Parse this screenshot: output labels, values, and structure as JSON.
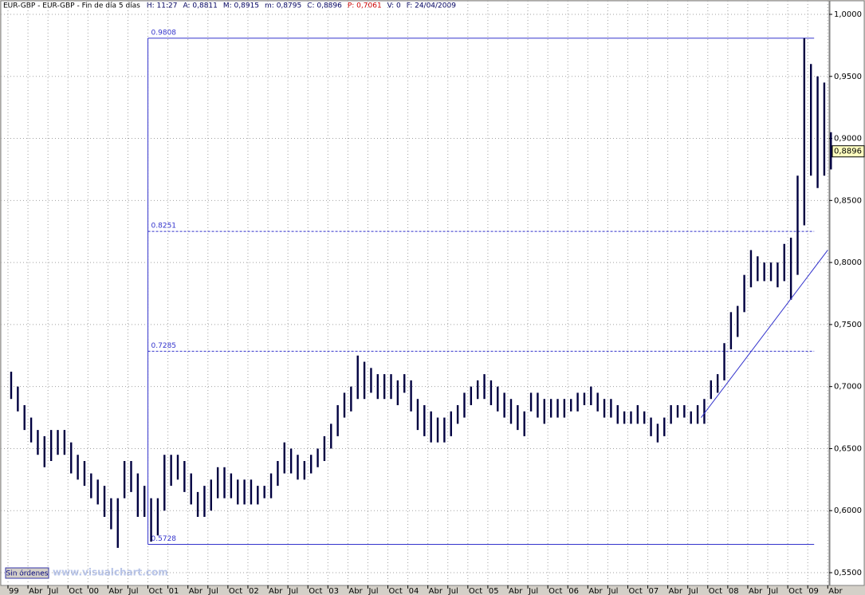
{
  "chart_data": {
    "type": "high_low",
    "title": "EUR-GBP - EUR-GBP - Fin de día 5 días",
    "info": [
      "H: 11:27",
      "A: 0,8811",
      "M: 0,8915",
      "m: 0,8795",
      "C: 0,8896",
      "P: 0,7061",
      "V: 0",
      "F: 24/04/2009"
    ],
    "x": [
      "1999-01",
      "1999-02",
      "1999-03",
      "1999-04",
      "1999-05",
      "1999-06",
      "1999-07",
      "1999-08",
      "1999-09",
      "1999-10",
      "1999-11",
      "1999-12",
      "2000-01",
      "2000-02",
      "2000-03",
      "2000-04",
      "2000-05",
      "2000-06",
      "2000-07",
      "2000-08",
      "2000-09",
      "2000-10",
      "2000-11",
      "2000-12",
      "2001-01",
      "2001-02",
      "2001-03",
      "2001-04",
      "2001-05",
      "2001-06",
      "2001-07",
      "2001-08",
      "2001-09",
      "2001-10",
      "2001-11",
      "2001-12",
      "2002-01",
      "2002-02",
      "2002-03",
      "2002-04",
      "2002-05",
      "2002-06",
      "2002-07",
      "2002-08",
      "2002-09",
      "2002-10",
      "2002-11",
      "2002-12",
      "2003-01",
      "2003-02",
      "2003-03",
      "2003-04",
      "2003-05",
      "2003-06",
      "2003-07",
      "2003-08",
      "2003-09",
      "2003-10",
      "2003-11",
      "2003-12",
      "2004-01",
      "2004-02",
      "2004-03",
      "2004-04",
      "2004-05",
      "2004-06",
      "2004-07",
      "2004-08",
      "2004-09",
      "2004-10",
      "2004-11",
      "2004-12",
      "2005-01",
      "2005-02",
      "2005-03",
      "2005-04",
      "2005-05",
      "2005-06",
      "2005-07",
      "2005-08",
      "2005-09",
      "2005-10",
      "2005-11",
      "2005-12",
      "2006-01",
      "2006-02",
      "2006-03",
      "2006-04",
      "2006-05",
      "2006-06",
      "2006-07",
      "2006-08",
      "2006-09",
      "2006-10",
      "2006-11",
      "2006-12",
      "2007-01",
      "2007-02",
      "2007-03",
      "2007-04",
      "2007-05",
      "2007-06",
      "2007-07",
      "2007-08",
      "2007-09",
      "2007-10",
      "2007-11",
      "2007-12",
      "2008-01",
      "2008-02",
      "2008-03",
      "2008-04",
      "2008-05",
      "2008-06",
      "2008-07",
      "2008-08",
      "2008-09",
      "2008-10",
      "2008-11",
      "2008-12",
      "2009-01",
      "2009-02",
      "2009-03",
      "2009-04"
    ],
    "high": [
      0.712,
      0.7,
      0.685,
      0.675,
      0.665,
      0.66,
      0.665,
      0.665,
      0.665,
      0.655,
      0.645,
      0.64,
      0.63,
      0.625,
      0.62,
      0.61,
      0.61,
      0.64,
      0.64,
      0.63,
      0.62,
      0.61,
      0.61,
      0.645,
      0.645,
      0.645,
      0.64,
      0.63,
      0.615,
      0.62,
      0.625,
      0.635,
      0.635,
      0.63,
      0.625,
      0.625,
      0.625,
      0.62,
      0.62,
      0.63,
      0.64,
      0.655,
      0.65,
      0.645,
      0.64,
      0.645,
      0.65,
      0.66,
      0.67,
      0.685,
      0.695,
      0.7,
      0.725,
      0.72,
      0.715,
      0.71,
      0.71,
      0.71,
      0.705,
      0.71,
      0.705,
      0.69,
      0.685,
      0.68,
      0.675,
      0.675,
      0.68,
      0.685,
      0.695,
      0.7,
      0.705,
      0.71,
      0.705,
      0.7,
      0.695,
      0.69,
      0.685,
      0.68,
      0.695,
      0.695,
      0.69,
      0.69,
      0.69,
      0.69,
      0.69,
      0.695,
      0.695,
      0.7,
      0.695,
      0.69,
      0.69,
      0.685,
      0.68,
      0.68,
      0.685,
      0.68,
      0.675,
      0.67,
      0.675,
      0.685,
      0.685,
      0.685,
      0.68,
      0.685,
      0.69,
      0.705,
      0.71,
      0.735,
      0.76,
      0.765,
      0.79,
      0.81,
      0.805,
      0.8,
      0.8,
      0.8,
      0.815,
      0.82,
      0.87,
      0.9808,
      0.96,
      0.95,
      0.945,
      0.905
    ],
    "low": [
      0.69,
      0.68,
      0.665,
      0.655,
      0.645,
      0.635,
      0.64,
      0.645,
      0.645,
      0.63,
      0.625,
      0.62,
      0.61,
      0.605,
      0.595,
      0.585,
      0.57,
      0.61,
      0.615,
      0.595,
      0.595,
      0.575,
      0.58,
      0.6,
      0.62,
      0.625,
      0.615,
      0.605,
      0.595,
      0.595,
      0.6,
      0.61,
      0.61,
      0.61,
      0.605,
      0.605,
      0.605,
      0.605,
      0.61,
      0.61,
      0.62,
      0.63,
      0.63,
      0.625,
      0.625,
      0.63,
      0.635,
      0.64,
      0.65,
      0.66,
      0.675,
      0.68,
      0.69,
      0.69,
      0.695,
      0.69,
      0.69,
      0.69,
      0.685,
      0.695,
      0.68,
      0.665,
      0.66,
      0.655,
      0.655,
      0.655,
      0.66,
      0.67,
      0.675,
      0.685,
      0.69,
      0.69,
      0.685,
      0.68,
      0.675,
      0.67,
      0.665,
      0.66,
      0.68,
      0.675,
      0.67,
      0.675,
      0.675,
      0.675,
      0.68,
      0.68,
      0.685,
      0.685,
      0.68,
      0.675,
      0.675,
      0.67,
      0.67,
      0.67,
      0.67,
      0.67,
      0.66,
      0.655,
      0.66,
      0.67,
      0.675,
      0.675,
      0.67,
      0.67,
      0.67,
      0.69,
      0.695,
      0.705,
      0.73,
      0.74,
      0.76,
      0.78,
      0.785,
      0.785,
      0.785,
      0.78,
      0.785,
      0.77,
      0.79,
      0.83,
      0.87,
      0.86,
      0.87,
      0.875
    ],
    "color": "#000040",
    "ylim": [
      0.55,
      1.0
    ],
    "yticks": [
      {
        "value": 0.55,
        "label": "0,5500"
      },
      {
        "value": 0.6,
        "label": "0,6000"
      },
      {
        "value": 0.65,
        "label": "0,6500"
      },
      {
        "value": 0.7,
        "label": "0,7000"
      },
      {
        "value": 0.75,
        "label": "0,7500"
      },
      {
        "value": 0.8,
        "label": "0,8000"
      },
      {
        "value": 0.85,
        "label": "0,8500"
      },
      {
        "value": 0.9,
        "label": "0,9000"
      },
      {
        "value": 0.95,
        "label": "0,9500"
      },
      {
        "value": 1.0,
        "label": "1,0000"
      }
    ],
    "xticks": [
      {
        "value": "1999-01",
        "label": "99"
      },
      {
        "value": "1999-04",
        "label": "Abr"
      },
      {
        "value": "1999-07",
        "label": "Jul"
      },
      {
        "value": "1999-10",
        "label": "Oct"
      },
      {
        "value": "2000-01",
        "label": "00"
      },
      {
        "value": "2000-04",
        "label": "Abr"
      },
      {
        "value": "2000-07",
        "label": "Jul"
      },
      {
        "value": "2000-10",
        "label": "Oct"
      },
      {
        "value": "2001-01",
        "label": "01"
      },
      {
        "value": "2001-04",
        "label": "Abr"
      },
      {
        "value": "2001-07",
        "label": "Jul"
      },
      {
        "value": "2001-10",
        "label": "Oct"
      },
      {
        "value": "2002-01",
        "label": "02"
      },
      {
        "value": "2002-04",
        "label": "Abr"
      },
      {
        "value": "2002-07",
        "label": "Jul"
      },
      {
        "value": "2002-10",
        "label": "Oct"
      },
      {
        "value": "2003-01",
        "label": "03"
      },
      {
        "value": "2003-04",
        "label": "Abr"
      },
      {
        "value": "2003-07",
        "label": "Jul"
      },
      {
        "value": "2003-10",
        "label": "Oct"
      },
      {
        "value": "2004-01",
        "label": "04"
      },
      {
        "value": "2004-04",
        "label": "Abr"
      },
      {
        "value": "2004-07",
        "label": "Jul"
      },
      {
        "value": "2004-10",
        "label": "Oct"
      },
      {
        "value": "2005-01",
        "label": "05"
      },
      {
        "value": "2005-04",
        "label": "Abr"
      },
      {
        "value": "2005-07",
        "label": "Jul"
      },
      {
        "value": "2005-10",
        "label": "Oct"
      },
      {
        "value": "2006-01",
        "label": "06"
      },
      {
        "value": "2006-04",
        "label": "Abr"
      },
      {
        "value": "2006-07",
        "label": "Jul"
      },
      {
        "value": "2006-10",
        "label": "Oct"
      },
      {
        "value": "2007-01",
        "label": "07"
      },
      {
        "value": "2007-04",
        "label": "Abr"
      },
      {
        "value": "2007-07",
        "label": "Jul"
      },
      {
        "value": "2007-10",
        "label": "Oct"
      },
      {
        "value": "2008-01",
        "label": "08"
      },
      {
        "value": "2008-04",
        "label": "Abr"
      },
      {
        "value": "2008-07",
        "label": "Jul"
      },
      {
        "value": "2008-10",
        "label": "Oct"
      },
      {
        "value": "2009-01",
        "label": "09"
      },
      {
        "value": "2009-04",
        "label": "Abr"
      }
    ],
    "grid": true,
    "levels": [
      {
        "value": 0.9808,
        "label": "0.9808"
      },
      {
        "value": 0.8251,
        "label": "0.8251"
      },
      {
        "value": 0.7285,
        "label": "0.7285"
      },
      {
        "value": 0.5728,
        "label": "0.5728"
      }
    ],
    "levels_start": "2000-10",
    "levels_end": "2009-01",
    "levels_color": "#3333cc",
    "trendline": {
      "from": [
        "2007-09",
        0.675
      ],
      "to": [
        "2009-04",
        0.81
      ]
    },
    "last_value": {
      "value": 0.8896,
      "label": "0,8896"
    },
    "button": "Sin órdenes",
    "watermark": "www.visualchart.com"
  }
}
